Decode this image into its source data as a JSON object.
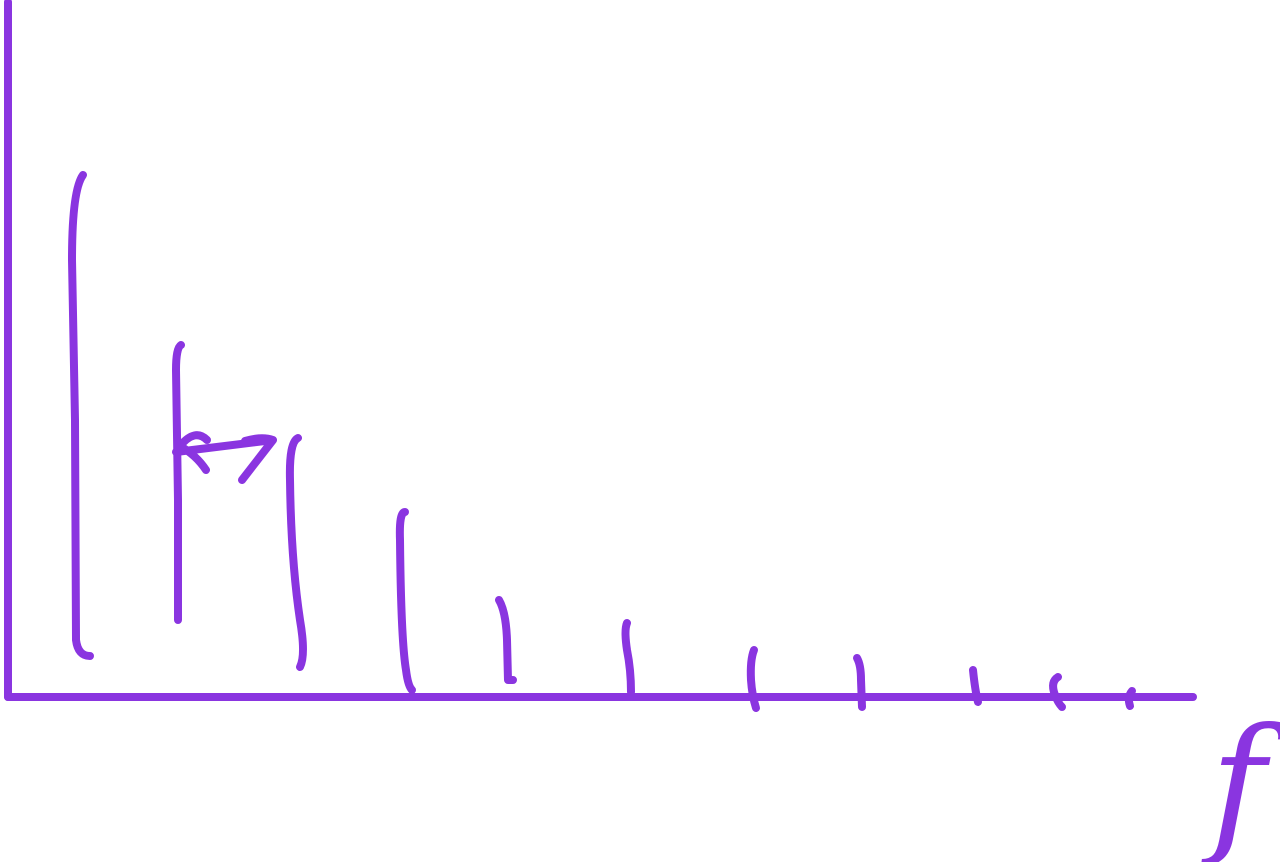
{
  "axis_label": "f"
}
